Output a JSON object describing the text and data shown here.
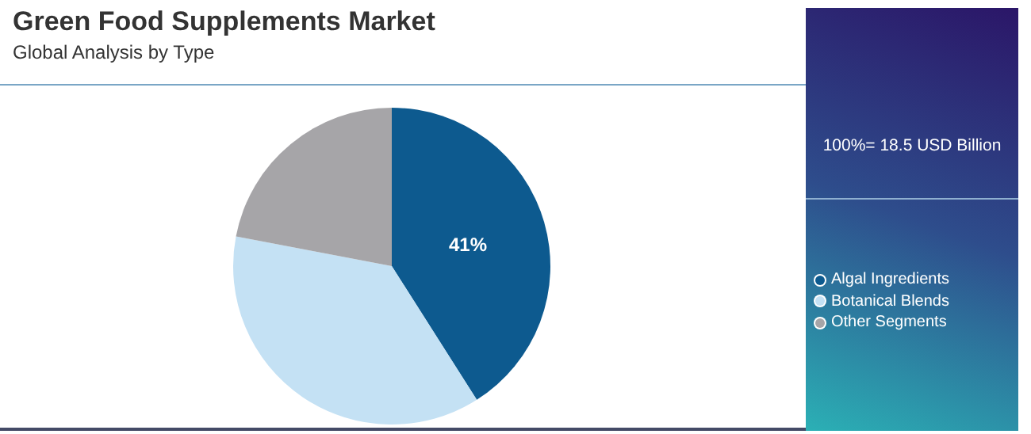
{
  "chart_data": {
    "type": "pie",
    "title": "Green Food Supplements Market",
    "subtitle": "Global Analysis by Type",
    "categories": [
      "Algal Ingredients",
      "Botanical Blends",
      "Other Segments"
    ],
    "values": [
      41,
      37,
      22
    ],
    "colors": [
      "#0d5a8f",
      "#c4e1f4",
      "#a6a5a8"
    ],
    "value_labels": [
      "41%",
      null,
      null
    ],
    "annotations": [
      "100%= 18.5 USD Billion"
    ],
    "legend": "right"
  }
}
